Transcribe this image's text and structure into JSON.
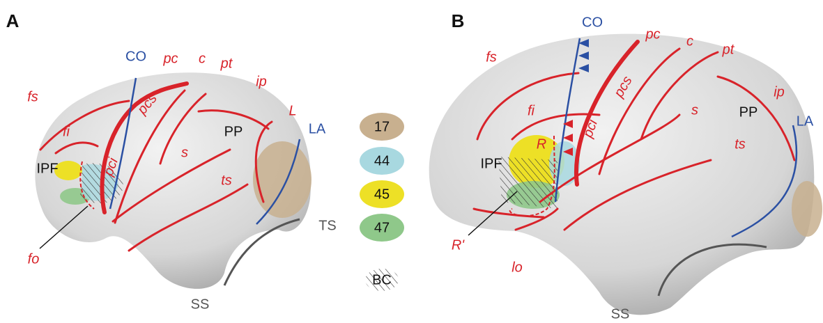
{
  "panel_a": {
    "label": "A",
    "labels": [
      "CO",
      "pc",
      "c",
      "pt",
      "ip",
      "fs",
      "pcs",
      "L",
      "LA",
      "fi",
      "pci",
      "PP",
      "IPF",
      "s",
      "ts",
      "TS",
      "fo",
      "SS"
    ]
  },
  "panel_b": {
    "label": "B",
    "labels": [
      "CO",
      "pc",
      "c",
      "pt",
      "fs",
      "pcs",
      "ip",
      "fi",
      "s",
      "PP",
      "LA",
      "R",
      "pci",
      "IPF",
      "ts",
      "R'",
      "lo",
      "SS"
    ]
  },
  "legend": {
    "items": [
      "17",
      "44",
      "45",
      "47"
    ],
    "hatch": "BC"
  }
}
